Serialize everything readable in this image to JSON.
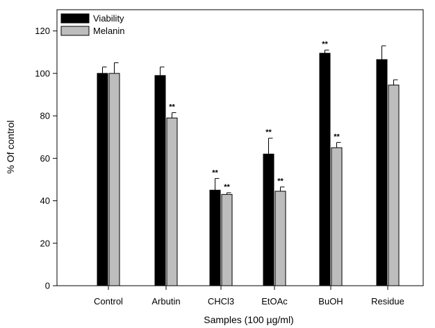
{
  "chart_data": {
    "type": "bar",
    "title": "",
    "xlabel": "Samples (100 µg/ml)",
    "ylabel": "% Of control",
    "ylim": [
      0,
      130
    ],
    "yticks": [
      0,
      20,
      40,
      60,
      80,
      100,
      120
    ],
    "categories": [
      "Control",
      "Arbutin",
      "CHCl3",
      "EtOAc",
      "BuOH",
      "Residue"
    ],
    "legend_position": "top-left",
    "grid": false,
    "series": [
      {
        "name": "Viability",
        "color": "#000000",
        "values": [
          100,
          99,
          45,
          62,
          109.5,
          106.5
        ],
        "errors": [
          3,
          4,
          5.5,
          7.5,
          1.5,
          6.5
        ],
        "annotations": [
          "",
          "",
          "**",
          "**",
          "**",
          ""
        ]
      },
      {
        "name": "Melanin",
        "color": "#bdbdbd",
        "values": [
          100,
          79,
          43,
          44.5,
          65,
          94.5
        ],
        "errors": [
          5,
          2.5,
          0.8,
          2,
          2.5,
          2.5
        ],
        "annotations": [
          "",
          "**",
          "**",
          "**",
          "**",
          ""
        ]
      }
    ]
  }
}
